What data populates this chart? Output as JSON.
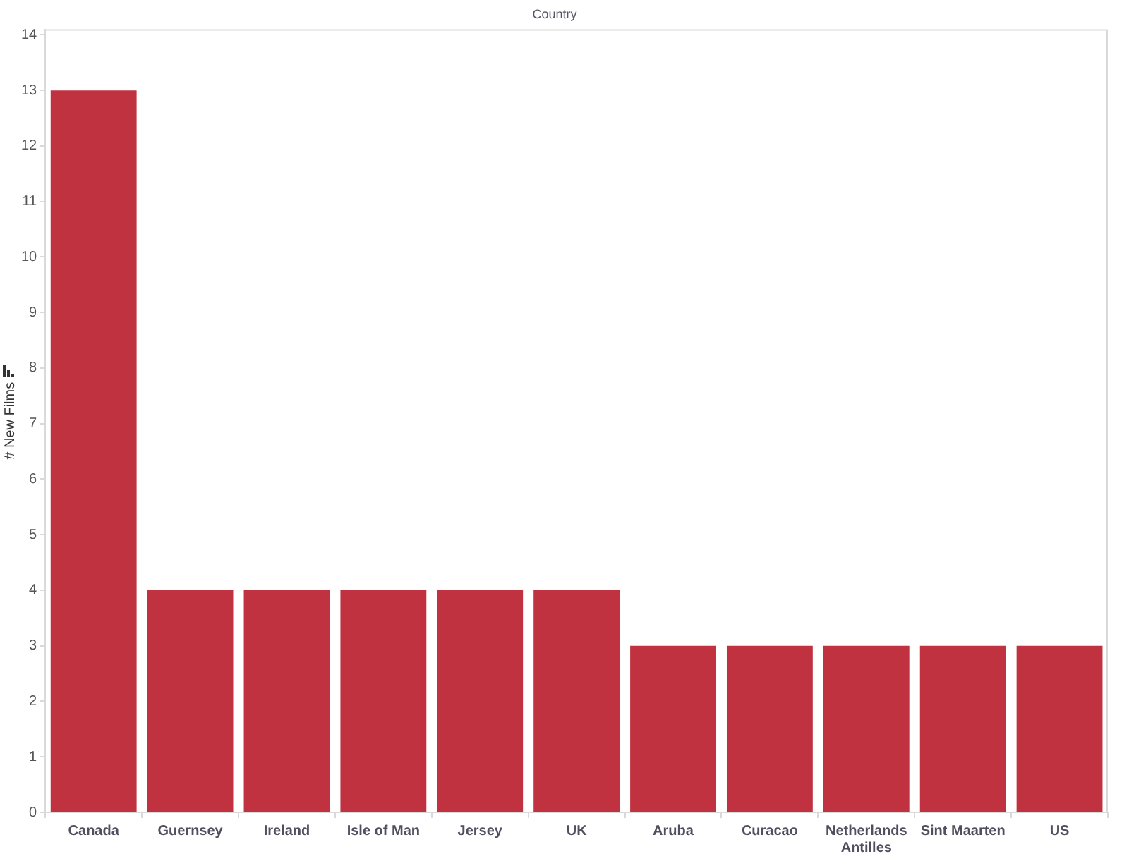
{
  "chart_data": {
    "type": "bar",
    "title": "Country",
    "ylabel": "# New Films",
    "categories": [
      "Canada",
      "Guernsey",
      "Ireland",
      "Isle of Man",
      "Jersey",
      "UK",
      "Aruba",
      "Curacao",
      "Netherlands Antilles",
      "Sint Maarten",
      "US"
    ],
    "values": [
      13,
      4,
      4,
      4,
      4,
      4,
      3,
      3,
      3,
      3,
      3
    ],
    "color": "#c0323f",
    "ylim": [
      0,
      14.1
    ],
    "yticks": [
      0,
      1,
      2,
      3,
      4,
      5,
      6,
      7,
      8,
      9,
      10,
      11,
      12,
      13,
      14
    ],
    "grid": false
  }
}
